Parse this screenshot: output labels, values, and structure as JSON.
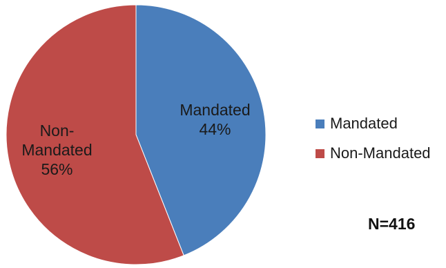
{
  "chart_data": {
    "type": "pie",
    "slices": [
      {
        "name": "Mandated",
        "percent": 44,
        "color": "#4a7ebb",
        "label_lines": [
          "Mandated",
          "44%"
        ]
      },
      {
        "name": "Non-Mandated",
        "percent": 56,
        "color": "#be4b48",
        "label_lines": [
          "Non-",
          "Mandated",
          "56%"
        ]
      }
    ],
    "legend": {
      "placement": "right",
      "items": [
        {
          "label": "Mandated",
          "color": "#4a7ebb"
        },
        {
          "label": "Non-Mandated",
          "color": "#be4b48"
        }
      ]
    },
    "annotation": "N=416"
  }
}
